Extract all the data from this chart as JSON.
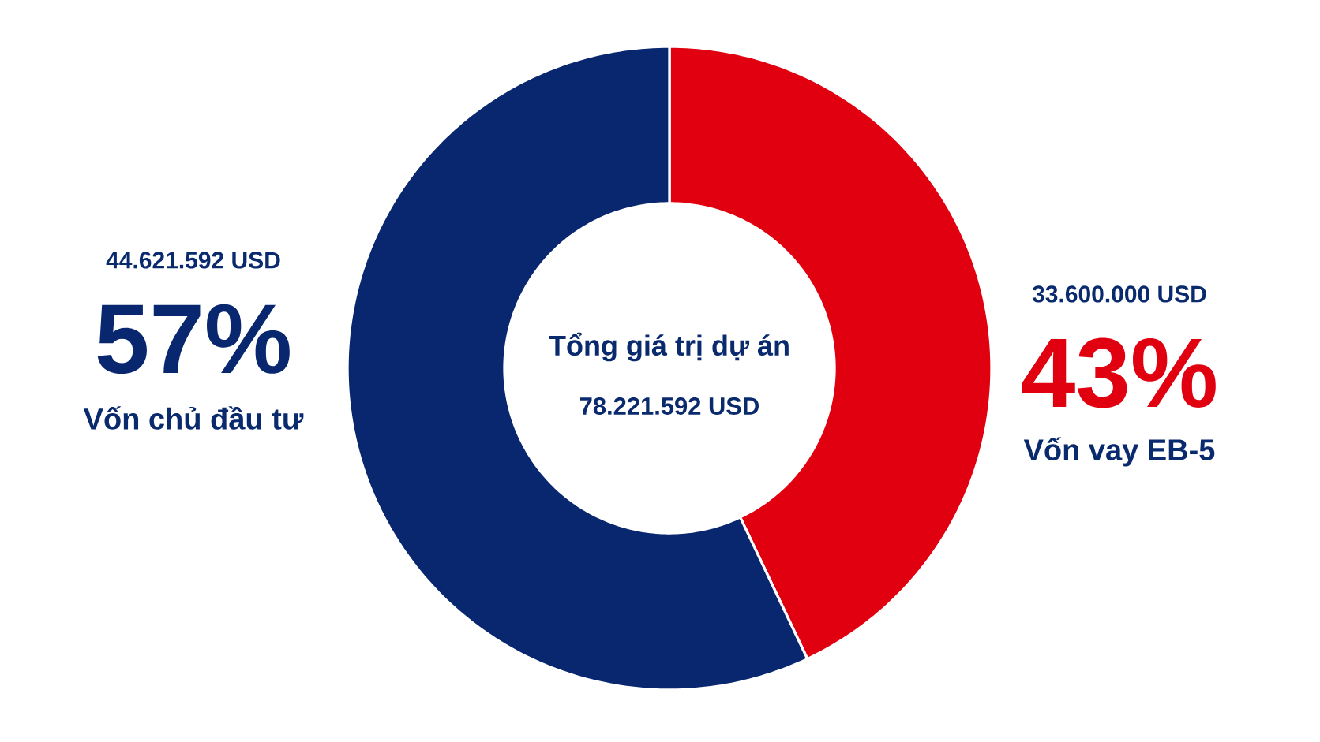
{
  "chart_data": {
    "type": "donut",
    "title": "Tổng giá trị dự án",
    "subtitle": "78.221.592 USD",
    "categories": [
      "Vốn vay EB-5",
      "Vốn chủ đầu tư"
    ],
    "values": [
      33600000,
      44621592
    ],
    "colors": [
      "#e1000f",
      "#08276f"
    ],
    "value_labels": [
      "33.600.000 USD",
      "44.621.592 USD"
    ],
    "annotations": [
      {
        "text": "43%",
        "x": "Vốn vay EB-5"
      },
      {
        "text": "57%",
        "x": "Vốn chủ đầu tư"
      }
    ]
  }
}
